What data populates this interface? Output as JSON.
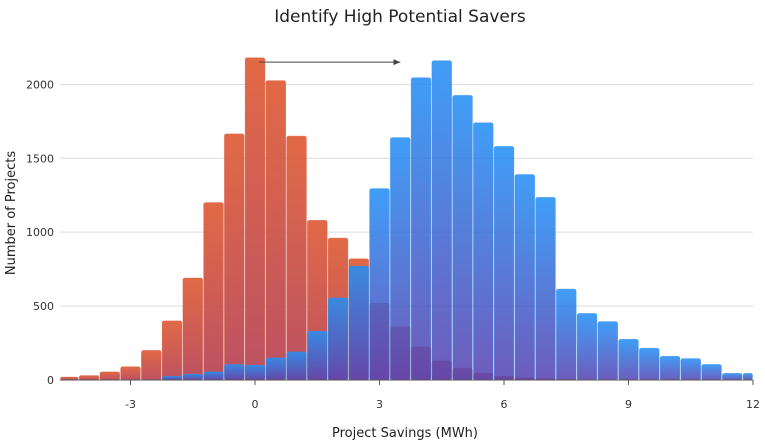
{
  "chart_data": {
    "type": "bar",
    "title": "Identify High Potential Savers",
    "xlabel": "Project Savings (MWh)",
    "ylabel": "Number of Projects",
    "xlim": [
      -4.7,
      12
    ],
    "ylim": [
      0,
      2300
    ],
    "xticks": [
      -3,
      0,
      3,
      6,
      9,
      12
    ],
    "yticks": [
      0,
      500,
      1000,
      1500,
      2000
    ],
    "grid": true,
    "bin_width": 0.5,
    "series": [
      {
        "color": "#d9583a",
        "bins": [
          {
            "x0": -4.7,
            "x1": -4.25,
            "y": 20
          },
          {
            "x0": -4.25,
            "x1": -3.75,
            "y": 30
          },
          {
            "x0": -3.75,
            "x1": -3.25,
            "y": 55
          },
          {
            "x0": -3.25,
            "x1": -2.75,
            "y": 90
          },
          {
            "x0": -2.75,
            "x1": -2.25,
            "y": 200
          },
          {
            "x0": -2.25,
            "x1": -1.75,
            "y": 400
          },
          {
            "x0": -1.75,
            "x1": -1.25,
            "y": 690
          },
          {
            "x0": -1.25,
            "x1": -0.75,
            "y": 1200
          },
          {
            "x0": -0.75,
            "x1": -0.25,
            "y": 1665
          },
          {
            "x0": -0.25,
            "x1": 0.25,
            "y": 2180
          },
          {
            "x0": 0.25,
            "x1": 0.75,
            "y": 2025
          },
          {
            "x0": 0.75,
            "x1": 1.25,
            "y": 1650
          },
          {
            "x0": 1.25,
            "x1": 1.75,
            "y": 1080
          },
          {
            "x0": 1.75,
            "x1": 2.25,
            "y": 960
          },
          {
            "x0": 2.25,
            "x1": 2.75,
            "y": 820
          },
          {
            "x0": 2.75,
            "x1": 3.25,
            "y": 520
          },
          {
            "x0": 3.25,
            "x1": 3.75,
            "y": 360
          },
          {
            "x0": 3.75,
            "x1": 4.25,
            "y": 225
          },
          {
            "x0": 4.25,
            "x1": 4.75,
            "y": 130
          },
          {
            "x0": 4.75,
            "x1": 5.25,
            "y": 80
          },
          {
            "x0": 5.25,
            "x1": 5.75,
            "y": 45
          },
          {
            "x0": 5.75,
            "x1": 6.25,
            "y": 25
          },
          {
            "x0": 6.25,
            "x1": 6.75,
            "y": 15
          },
          {
            "x0": 6.75,
            "x1": 7.25,
            "y": 10
          },
          {
            "x0": 7.25,
            "x1": 7.75,
            "y": 5
          }
        ]
      },
      {
        "color": "#2b8ff0",
        "bins": [
          {
            "x0": -2.25,
            "x1": -1.75,
            "y": 25
          },
          {
            "x0": -1.75,
            "x1": -1.25,
            "y": 40
          },
          {
            "x0": -1.25,
            "x1": -0.75,
            "y": 55
          },
          {
            "x0": -0.75,
            "x1": -0.25,
            "y": 105
          },
          {
            "x0": -0.25,
            "x1": 0.25,
            "y": 100
          },
          {
            "x0": 0.25,
            "x1": 0.75,
            "y": 150
          },
          {
            "x0": 0.75,
            "x1": 1.25,
            "y": 190
          },
          {
            "x0": 1.25,
            "x1": 1.75,
            "y": 330
          },
          {
            "x0": 1.75,
            "x1": 2.25,
            "y": 555
          },
          {
            "x0": 2.25,
            "x1": 2.75,
            "y": 770
          },
          {
            "x0": 2.75,
            "x1": 3.25,
            "y": 1295
          },
          {
            "x0": 3.25,
            "x1": 3.75,
            "y": 1640
          },
          {
            "x0": 3.75,
            "x1": 4.25,
            "y": 2045
          },
          {
            "x0": 4.25,
            "x1": 4.75,
            "y": 2160
          },
          {
            "x0": 4.75,
            "x1": 5.25,
            "y": 1925
          },
          {
            "x0": 5.25,
            "x1": 5.75,
            "y": 1740
          },
          {
            "x0": 5.75,
            "x1": 6.25,
            "y": 1580
          },
          {
            "x0": 6.25,
            "x1": 6.75,
            "y": 1390
          },
          {
            "x0": 6.75,
            "x1": 7.25,
            "y": 1235
          },
          {
            "x0": 7.25,
            "x1": 7.75,
            "y": 615
          },
          {
            "x0": 7.75,
            "x1": 8.25,
            "y": 450
          },
          {
            "x0": 8.25,
            "x1": 8.75,
            "y": 395
          },
          {
            "x0": 8.75,
            "x1": 9.25,
            "y": 275
          },
          {
            "x0": 9.25,
            "x1": 9.75,
            "y": 215
          },
          {
            "x0": 9.75,
            "x1": 10.25,
            "y": 160
          },
          {
            "x0": 10.25,
            "x1": 10.75,
            "y": 145
          },
          {
            "x0": 10.75,
            "x1": 11.25,
            "y": 105
          },
          {
            "x0": 11.25,
            "x1": 11.75,
            "y": 45
          },
          {
            "x0": 11.75,
            "x1": 12.0,
            "y": 45
          }
        ]
      }
    ],
    "annotations": [
      {
        "type": "arrow",
        "from": [
          0.1,
          2150
        ],
        "to": [
          3.5,
          2150
        ],
        "color": "#444444"
      }
    ]
  }
}
